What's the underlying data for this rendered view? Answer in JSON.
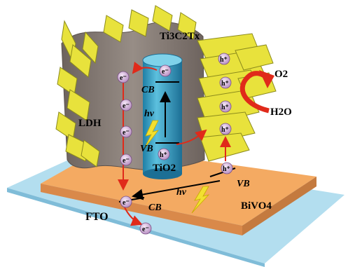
{
  "labels": {
    "ti3c2tx": "Ti3C2Tx",
    "ldh": "LDH",
    "tio2": "TiO2",
    "bivo4": "BiVO4",
    "fto": "FTO",
    "o2": "O2",
    "h2o": "H2O",
    "cb_tio2": "CB",
    "vb_tio2": "VB",
    "cb_bivo4": "CB",
    "vb_bivo4": "VB",
    "hv_tio2": "hν",
    "hv_bivo4": "hν",
    "electron": "e⁻",
    "hole": "h⁺"
  },
  "colors": {
    "fto": "#a8d8ec",
    "bivo4": "#f2a55e",
    "mxene": "#8a7f79",
    "tio2": "#3aa6c6",
    "ldh": "#e6e03a",
    "electron_fill": "#d8b8dc",
    "arrow_red": "#e02a1a"
  }
}
